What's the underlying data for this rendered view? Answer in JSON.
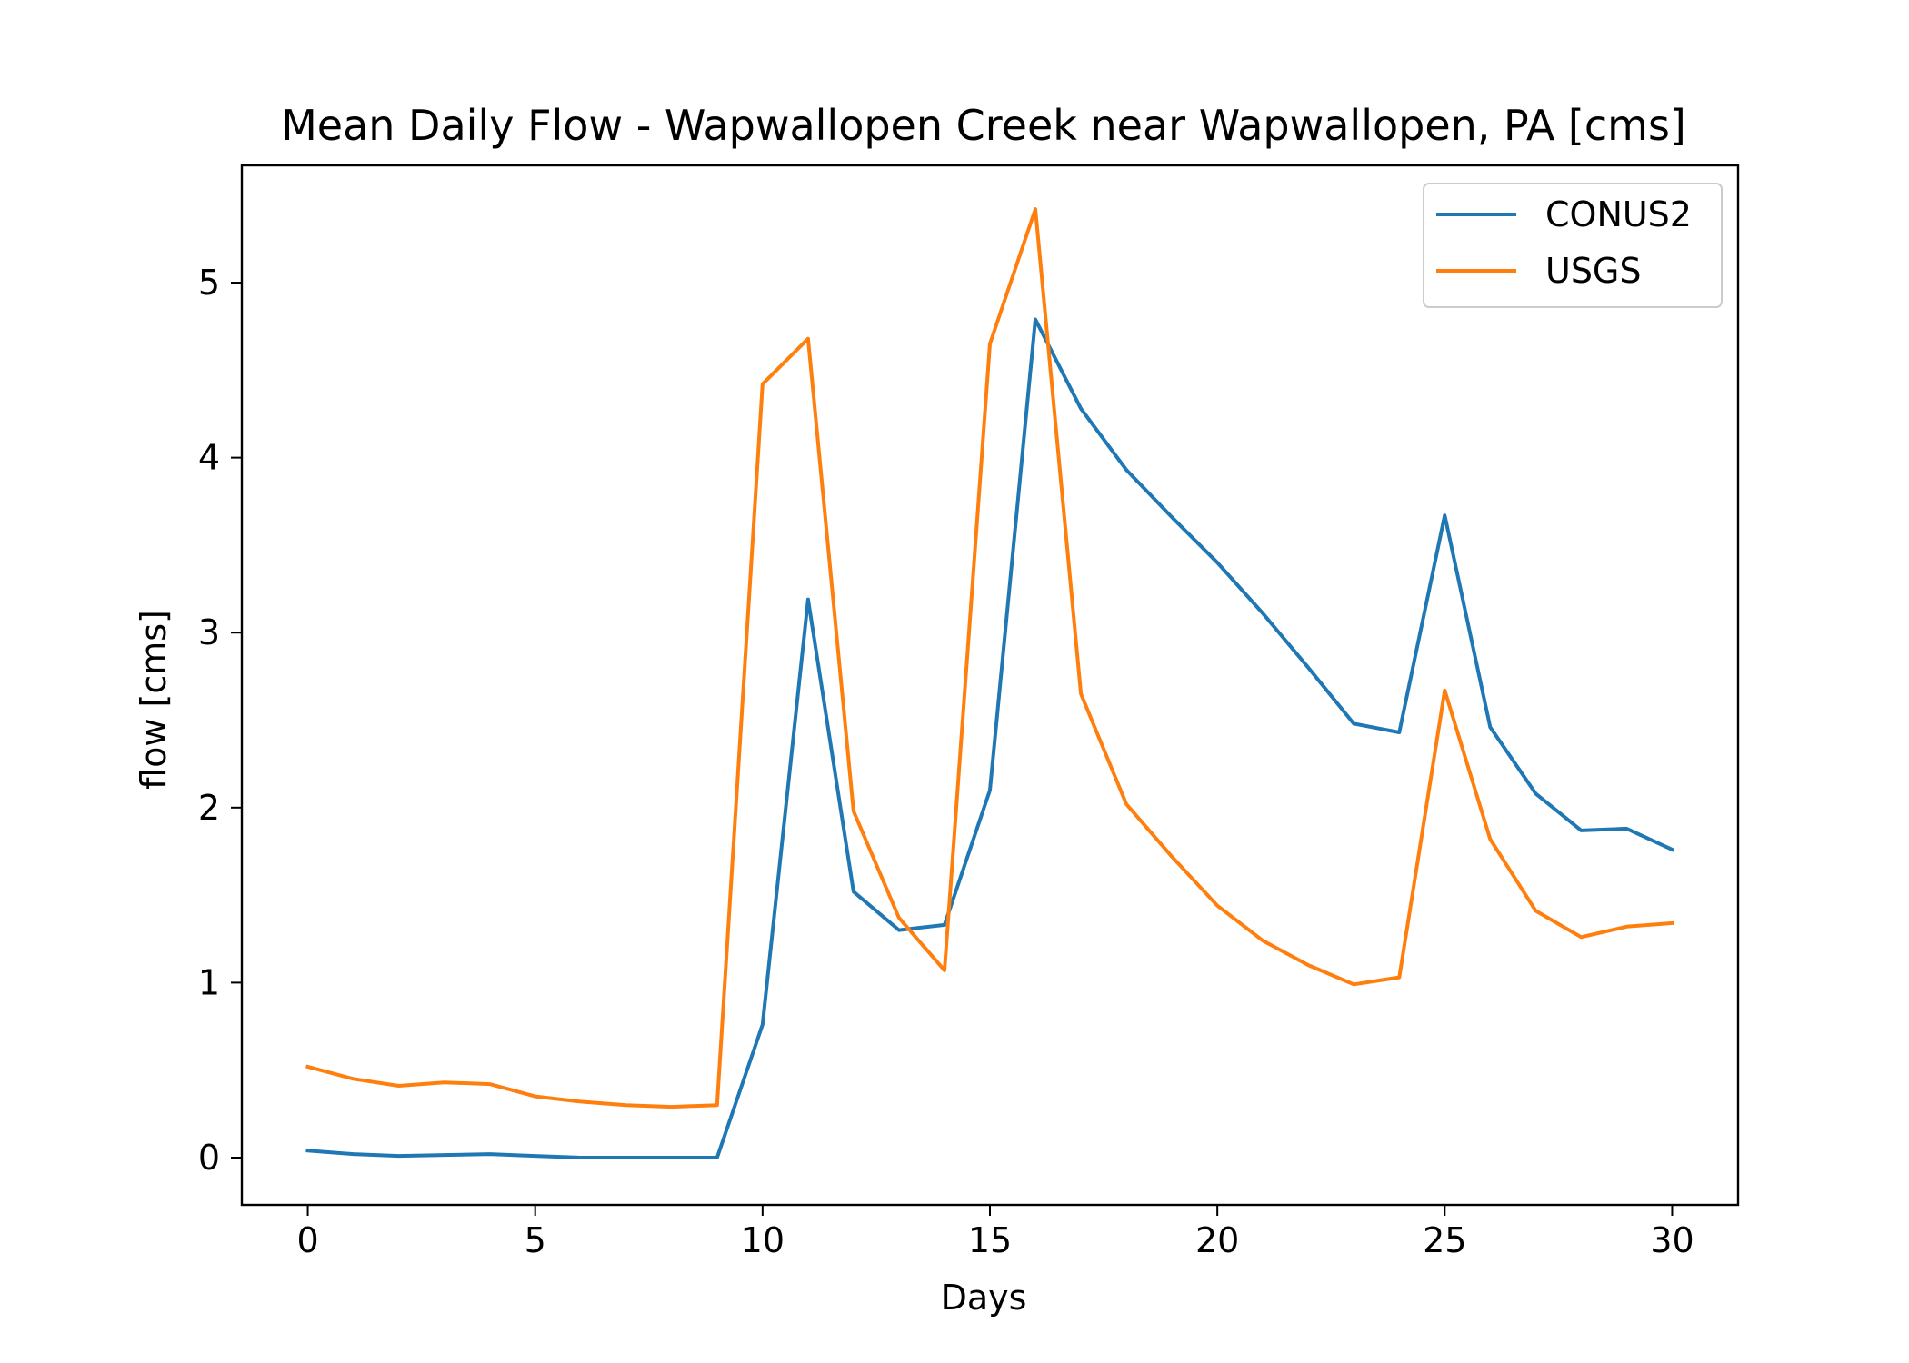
{
  "chart_data": {
    "type": "line",
    "title": "Mean Daily Flow - Wapwallopen Creek near Wapwallopen, PA [cms]",
    "xlabel": "Days",
    "ylabel": "flow [cms]",
    "xlim": [
      -1.45,
      31.45
    ],
    "ylim": [
      -0.27,
      5.67
    ],
    "xticks": [
      0,
      5,
      10,
      15,
      20,
      25,
      30
    ],
    "yticks": [
      0,
      1,
      2,
      3,
      4,
      5
    ],
    "grid": false,
    "legend_position": "top-right",
    "x": [
      0,
      1,
      2,
      3,
      4,
      5,
      6,
      7,
      8,
      9,
      10,
      11,
      12,
      13,
      14,
      15,
      16,
      17,
      18,
      19,
      20,
      21,
      22,
      23,
      24,
      25,
      26,
      27,
      28,
      29,
      30
    ],
    "series": [
      {
        "name": "CONUS2",
        "color": "#1f77b4",
        "values": [
          0.04,
          0.02,
          0.01,
          0.015,
          0.02,
          0.01,
          0.0,
          0.0,
          0.0,
          0.0,
          0.76,
          3.19,
          1.52,
          1.3,
          1.33,
          2.1,
          4.79,
          4.28,
          3.93,
          3.66,
          3.4,
          3.11,
          2.8,
          2.48,
          2.43,
          3.67,
          2.46,
          2.08,
          1.87,
          1.88,
          1.76
        ]
      },
      {
        "name": "USGS",
        "color": "#ff7f0e",
        "values": [
          0.52,
          0.45,
          0.41,
          0.43,
          0.42,
          0.35,
          0.32,
          0.3,
          0.29,
          0.3,
          4.42,
          4.68,
          1.98,
          1.37,
          1.07,
          4.65,
          5.42,
          2.65,
          2.02,
          1.72,
          1.44,
          1.24,
          1.1,
          0.99,
          1.03,
          2.67,
          1.82,
          1.41,
          1.26,
          1.32,
          1.34
        ]
      }
    ]
  }
}
